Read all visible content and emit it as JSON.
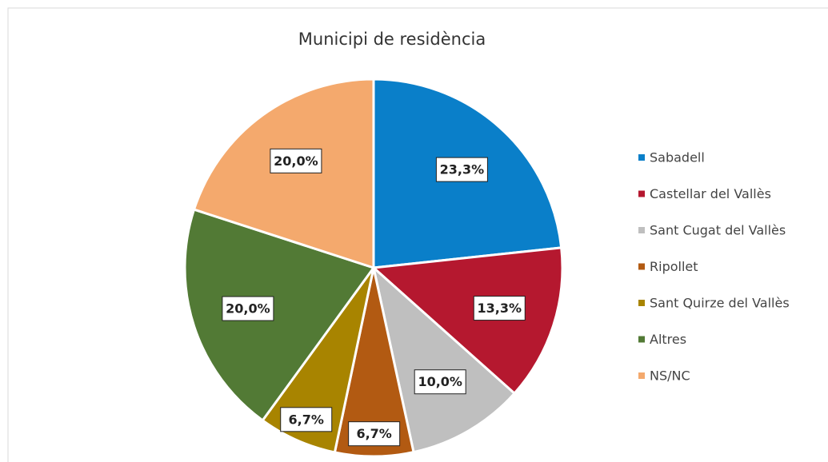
{
  "chart_data": {
    "type": "pie",
    "title": "Municipi de residència",
    "categories": [
      "Sabadell",
      "Castellar del Vallès",
      "Sant Cugat del Vallès",
      "Ripollet",
      "Sant Quirze del Vallès",
      "Altres",
      "NS/NC"
    ],
    "values": [
      23.3,
      13.3,
      10.0,
      6.7,
      6.7,
      20.0,
      20.0
    ],
    "value_labels": [
      "23,3%",
      "13,3%",
      "10,0%",
      "6,7%",
      "6,7%",
      "20,0%",
      "20,0%"
    ],
    "colors": [
      "#0a7fc9",
      "#b5182f",
      "#bfbfbf",
      "#b25a12",
      "#a88400",
      "#527a35",
      "#f4a96d"
    ],
    "legend": "right"
  }
}
